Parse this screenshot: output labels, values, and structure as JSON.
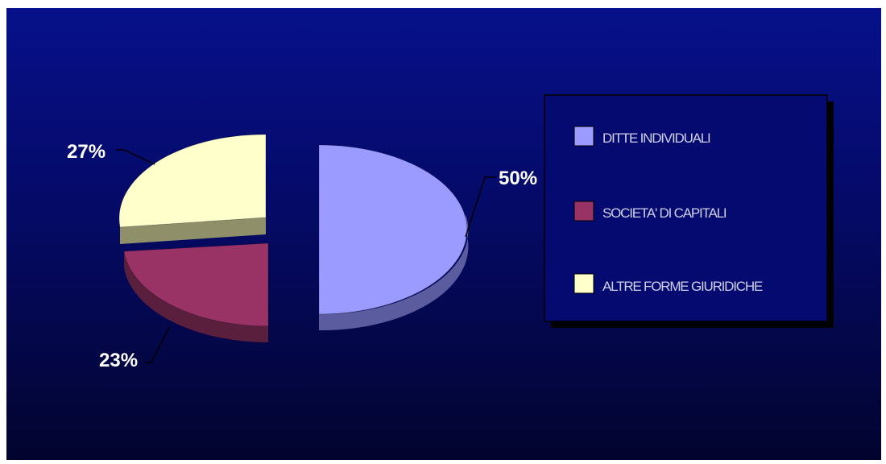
{
  "chart_data": {
    "type": "pie",
    "style": "3d-exploded",
    "slices": [
      {
        "label": "DITTE INDIVIDUALI",
        "value": 50,
        "display": "50%",
        "color": "#9b9bff",
        "side_color": "#5b5ba0"
      },
      {
        "label": "SOCIETA' DI CAPITALI",
        "value": 23,
        "display": "23%",
        "color": "#993366",
        "side_color": "#5a1f3d"
      },
      {
        "label": "ALTRE FORME GIURIDICHE",
        "value": 27,
        "display": "27%",
        "color": "#ffffcc",
        "side_color": "#8f8f6a"
      }
    ],
    "legend_position": "right"
  }
}
